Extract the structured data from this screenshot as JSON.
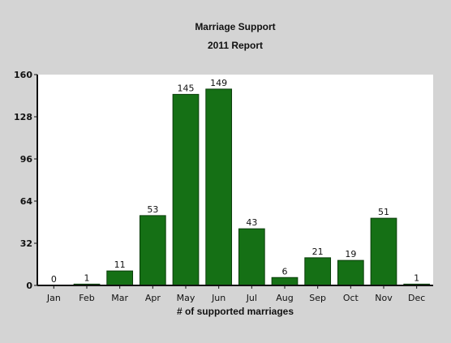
{
  "chart_data": {
    "type": "bar",
    "title": "Marriage Support",
    "subtitle": "2011 Report",
    "xlabel": "# of supported marriages",
    "ylabel": "",
    "categories": [
      "Jan",
      "Feb",
      "Mar",
      "Apr",
      "May",
      "Jun",
      "Jul",
      "Aug",
      "Sep",
      "Oct",
      "Nov",
      "Dec"
    ],
    "values": [
      0,
      1,
      11,
      53,
      145,
      149,
      43,
      6,
      21,
      19,
      51,
      1
    ],
    "data_labels": [
      "0",
      "1",
      "11",
      "53",
      "145",
      "149",
      "43",
      "6",
      "21",
      "19",
      "51",
      "1"
    ],
    "ylim": [
      0,
      160
    ],
    "yticks": [
      0,
      32,
      64,
      96,
      128,
      160
    ],
    "ytick_labels": [
      "0",
      "32",
      "64",
      "96",
      "128",
      "160"
    ],
    "grid": false,
    "legend": "none",
    "colors": {
      "background": "#d4d4d4",
      "plot_background": "#ffffff",
      "bar_fill": "#157015",
      "bar_edge": "#0a3d0a",
      "axis": "#111111"
    }
  }
}
